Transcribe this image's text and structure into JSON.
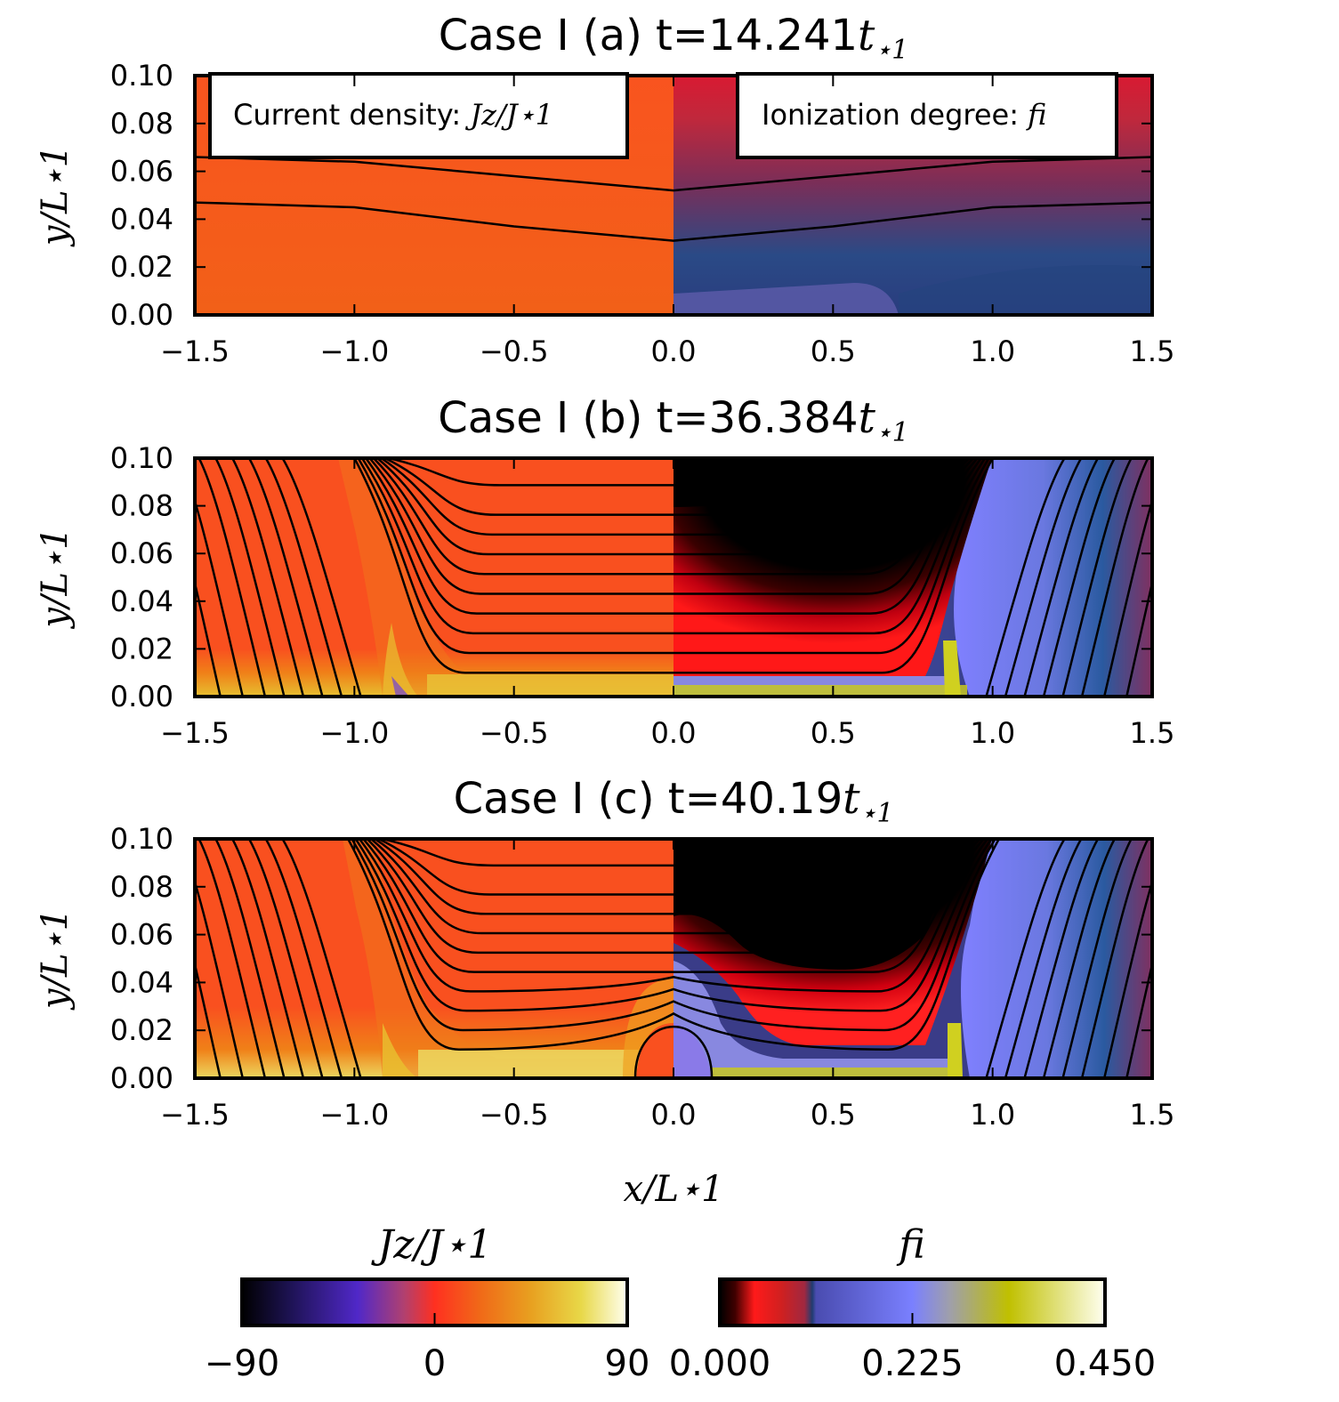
{
  "chart_data": {
    "type": "heatmap",
    "panels": [
      {
        "id": "a",
        "title_prefix": "Case I (a) t=",
        "time": "14.241",
        "time_unit": "t",
        "time_unit_sub": "⋆1",
        "annotations": [
          "Current density: ",
          "Ionization degree: "
        ],
        "annotation_symbols": [
          "Jz/J⋆1",
          "fi"
        ],
        "field_lines": [
          {
            "x": [
              -1.5,
              -1.0,
              -0.5,
              0.0,
              0.5,
              1.0,
              1.5
            ],
            "y": [
              0.066,
              0.064,
              0.058,
              0.052,
              0.058,
              0.064,
              0.066
            ]
          },
          {
            "x": [
              -1.5,
              -1.0,
              -0.5,
              0.0,
              0.5,
              1.0,
              1.5
            ],
            "y": [
              0.047,
              0.045,
              0.037,
              0.031,
              0.037,
              0.045,
              0.047
            ]
          }
        ]
      },
      {
        "id": "b",
        "title_prefix": "Case I (b) t=",
        "time": "36.384",
        "time_unit": "t",
        "time_unit_sub": "⋆1",
        "inflow_front_x": 0.9,
        "current_sheet_height": 0.01
      },
      {
        "id": "c",
        "title_prefix": "Case I (c) t=",
        "time": "40.19",
        "time_unit": "t",
        "time_unit_sub": "⋆1",
        "inflow_front_x": 0.92,
        "plasmoid": {
          "x_range": [
            -0.12,
            0.12
          ],
          "height": 0.025
        }
      }
    ],
    "xlim": [
      -1.5,
      1.5
    ],
    "ylim": [
      0.0,
      0.1
    ],
    "x_ticks": [
      "−1.5",
      "−1.0",
      "−0.5",
      "0.0",
      "0.5",
      "1.0",
      "1.5"
    ],
    "x_tick_values": [
      -1.5,
      -1.0,
      -0.5,
      0.0,
      0.5,
      1.0,
      1.5
    ],
    "y_ticks": [
      "0.00",
      "0.02",
      "0.04",
      "0.06",
      "0.08",
      "0.10"
    ],
    "y_tick_values": [
      0.0,
      0.02,
      0.04,
      0.06,
      0.08,
      0.1
    ],
    "xlabel": "x/L⋆1",
    "ylabel": "y/L⋆1",
    "colorbars": [
      {
        "label": "Jz/J⋆1",
        "range": [
          -90,
          90
        ],
        "ticks": [
          "−90",
          "0",
          "90"
        ],
        "tick_values": [
          -90,
          0,
          90
        ],
        "colors": [
          "#000000",
          "#3a1a8c",
          "#5a2fd0",
          "#b04060",
          "#ff3020",
          "#f06018",
          "#e8a020",
          "#e8d040",
          "#fffff0"
        ]
      },
      {
        "label": "fi",
        "range": [
          0.0,
          0.45
        ],
        "ticks": [
          "0.000",
          "0.225",
          "0.450"
        ],
        "tick_values": [
          0.0,
          0.225,
          0.45
        ],
        "colors": [
          "#000000",
          "#ff1a1a",
          "#c0283c",
          "#283c8c",
          "#5050c8",
          "#7a80ff",
          "#a0a0c0",
          "#c0c000",
          "#fffff0"
        ]
      }
    ]
  }
}
